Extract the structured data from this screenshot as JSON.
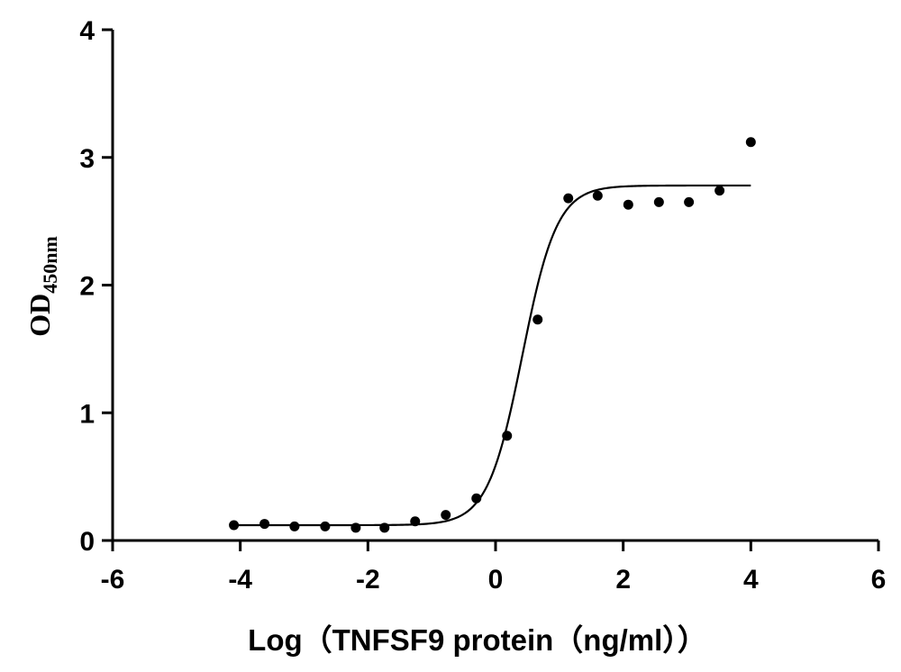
{
  "chart_data": {
    "type": "scatter",
    "xlabel": "Log（TNFSF9 protein（ng/ml））",
    "ylabel": {
      "main": "OD",
      "subscript": "450nm"
    },
    "xlim": [
      -6,
      6
    ],
    "ylim": [
      0,
      4
    ],
    "xticks": [
      -6,
      -4,
      -2,
      0,
      2,
      4,
      6
    ],
    "yticks": [
      0,
      1,
      2,
      3,
      4
    ],
    "xtick_labels": [
      "-6",
      "-4",
      "-2",
      "0",
      "2",
      "4",
      "6"
    ],
    "ytick_labels": [
      "0",
      "1",
      "2",
      "3",
      "4"
    ],
    "grid": false,
    "legend": false,
    "series": [
      {
        "type": "scatter",
        "x": [
          -4.1,
          -3.62,
          -3.15,
          -2.67,
          -2.19,
          -1.74,
          -1.26,
          -0.78,
          -0.3,
          0.18,
          0.66,
          1.14,
          1.6,
          2.08,
          2.56,
          3.03,
          3.51,
          4.0
        ],
        "y": [
          0.12,
          0.13,
          0.11,
          0.11,
          0.1,
          0.1,
          0.15,
          0.2,
          0.33,
          0.82,
          1.73,
          2.68,
          2.7,
          2.63,
          2.65,
          2.65,
          2.74,
          3.12
        ]
      },
      {
        "type": "line",
        "fit": "4PL",
        "bottom": 0.12,
        "top": 2.78,
        "log_ec50": 0.42,
        "hill_slope": 1.6,
        "x_range": [
          -4.1,
          4.0
        ]
      }
    ],
    "colors": {
      "points": "#000000",
      "curve": "#000000"
    }
  }
}
